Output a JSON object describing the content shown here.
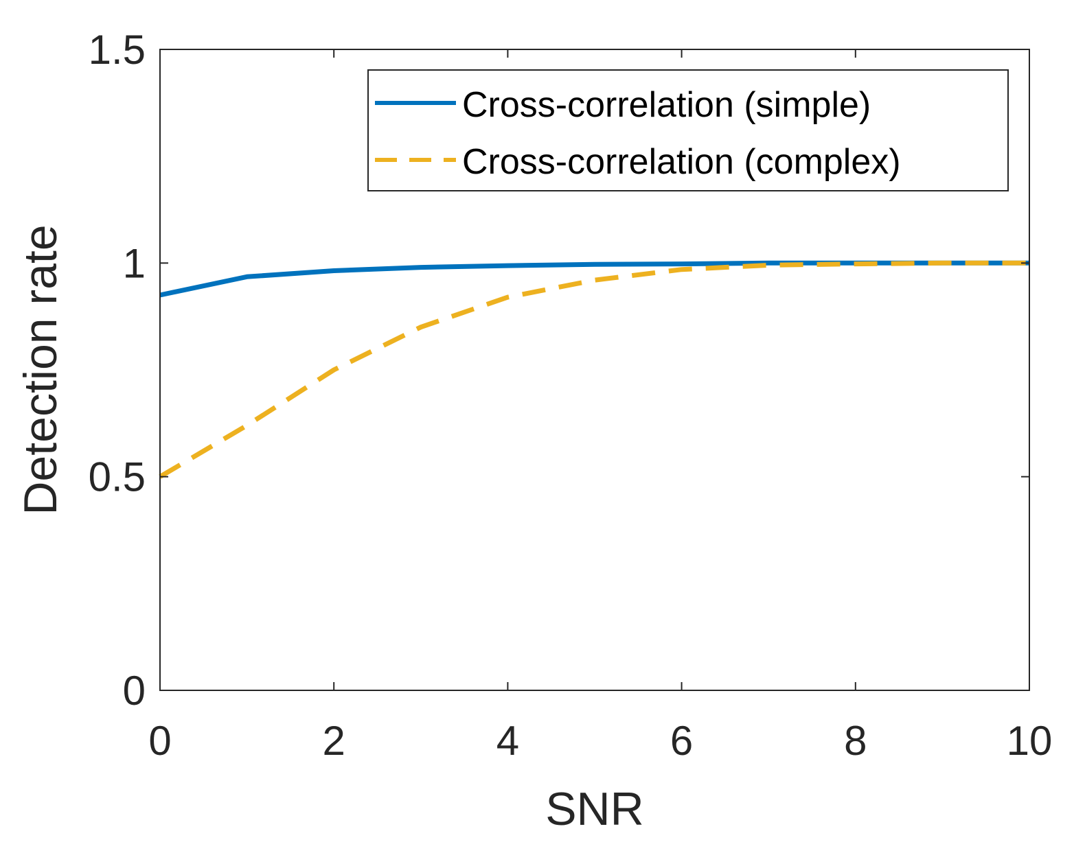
{
  "chart_data": {
    "type": "line",
    "title": "",
    "xlabel": "SNR",
    "ylabel": "Detection rate",
    "xlim": [
      0,
      10
    ],
    "ylim": [
      0,
      1.5
    ],
    "xticks": [
      0,
      2,
      4,
      6,
      8,
      10
    ],
    "xtick_labels": [
      "0",
      "2",
      "4",
      "6",
      "8",
      "10"
    ],
    "yticks": [
      0,
      0.5,
      1,
      1.5
    ],
    "ytick_labels": [
      "0",
      "0.5",
      "1",
      "1.5"
    ],
    "grid": false,
    "legend_position": "top-right",
    "x": [
      0,
      1,
      2,
      3,
      4,
      5,
      6,
      7,
      8,
      9,
      10
    ],
    "series": [
      {
        "name": "Cross-correlation (simple)",
        "color": "#0072BD",
        "style": "solid",
        "values": [
          0.925,
          0.968,
          0.982,
          0.99,
          0.994,
          0.997,
          0.998,
          1.0,
          1.0,
          1.0,
          1.0
        ]
      },
      {
        "name": "Cross-correlation (complex)",
        "color": "#EDB120",
        "style": "dashed",
        "values": [
          0.5,
          0.62,
          0.75,
          0.85,
          0.92,
          0.96,
          0.985,
          0.995,
          0.998,
          1.0,
          1.0
        ]
      }
    ]
  }
}
